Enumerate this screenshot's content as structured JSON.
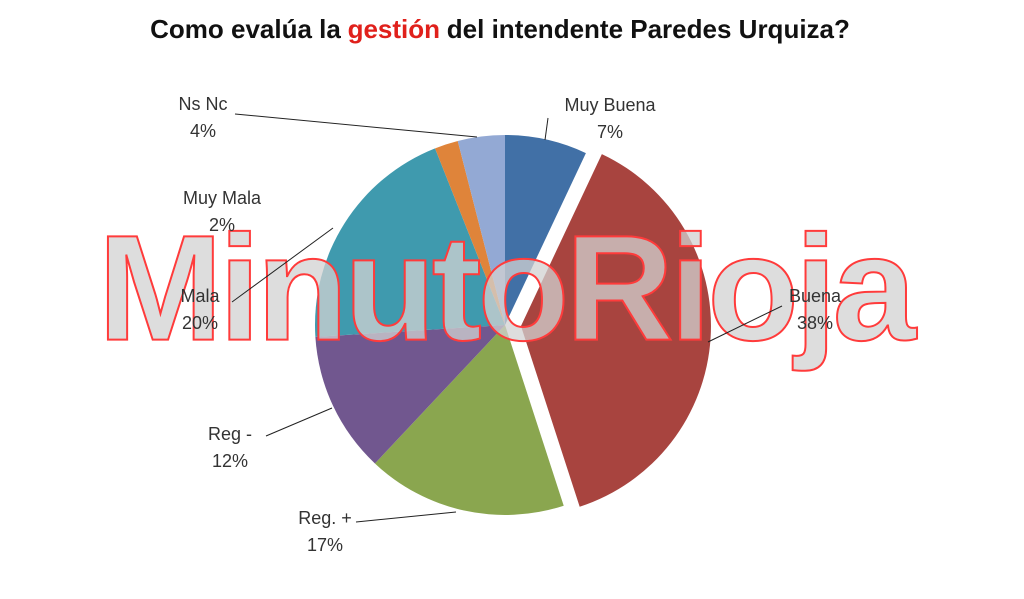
{
  "chart_data": {
    "type": "pie",
    "title": [
      "Como evalúa la",
      "gestión",
      "del intendente Paredes Urquiza?"
    ],
    "watermark": "MinutoRioja",
    "categories": [
      "Muy Buena",
      "Buena",
      "Reg. +",
      "Reg -",
      "Mala",
      "Muy Mala",
      "Ns Nc"
    ],
    "values": [
      7,
      38,
      17,
      12,
      20,
      2,
      4
    ],
    "value_labels": [
      "7%",
      "38%",
      "17%",
      "12%",
      "20%",
      "2%",
      "4%"
    ],
    "colors": [
      "#4170a6",
      "#a8443f",
      "#8aa64f",
      "#71578f",
      "#3f9aae",
      "#df843a",
      "#93a9d4"
    ],
    "exploded": [
      "Buena"
    ]
  }
}
